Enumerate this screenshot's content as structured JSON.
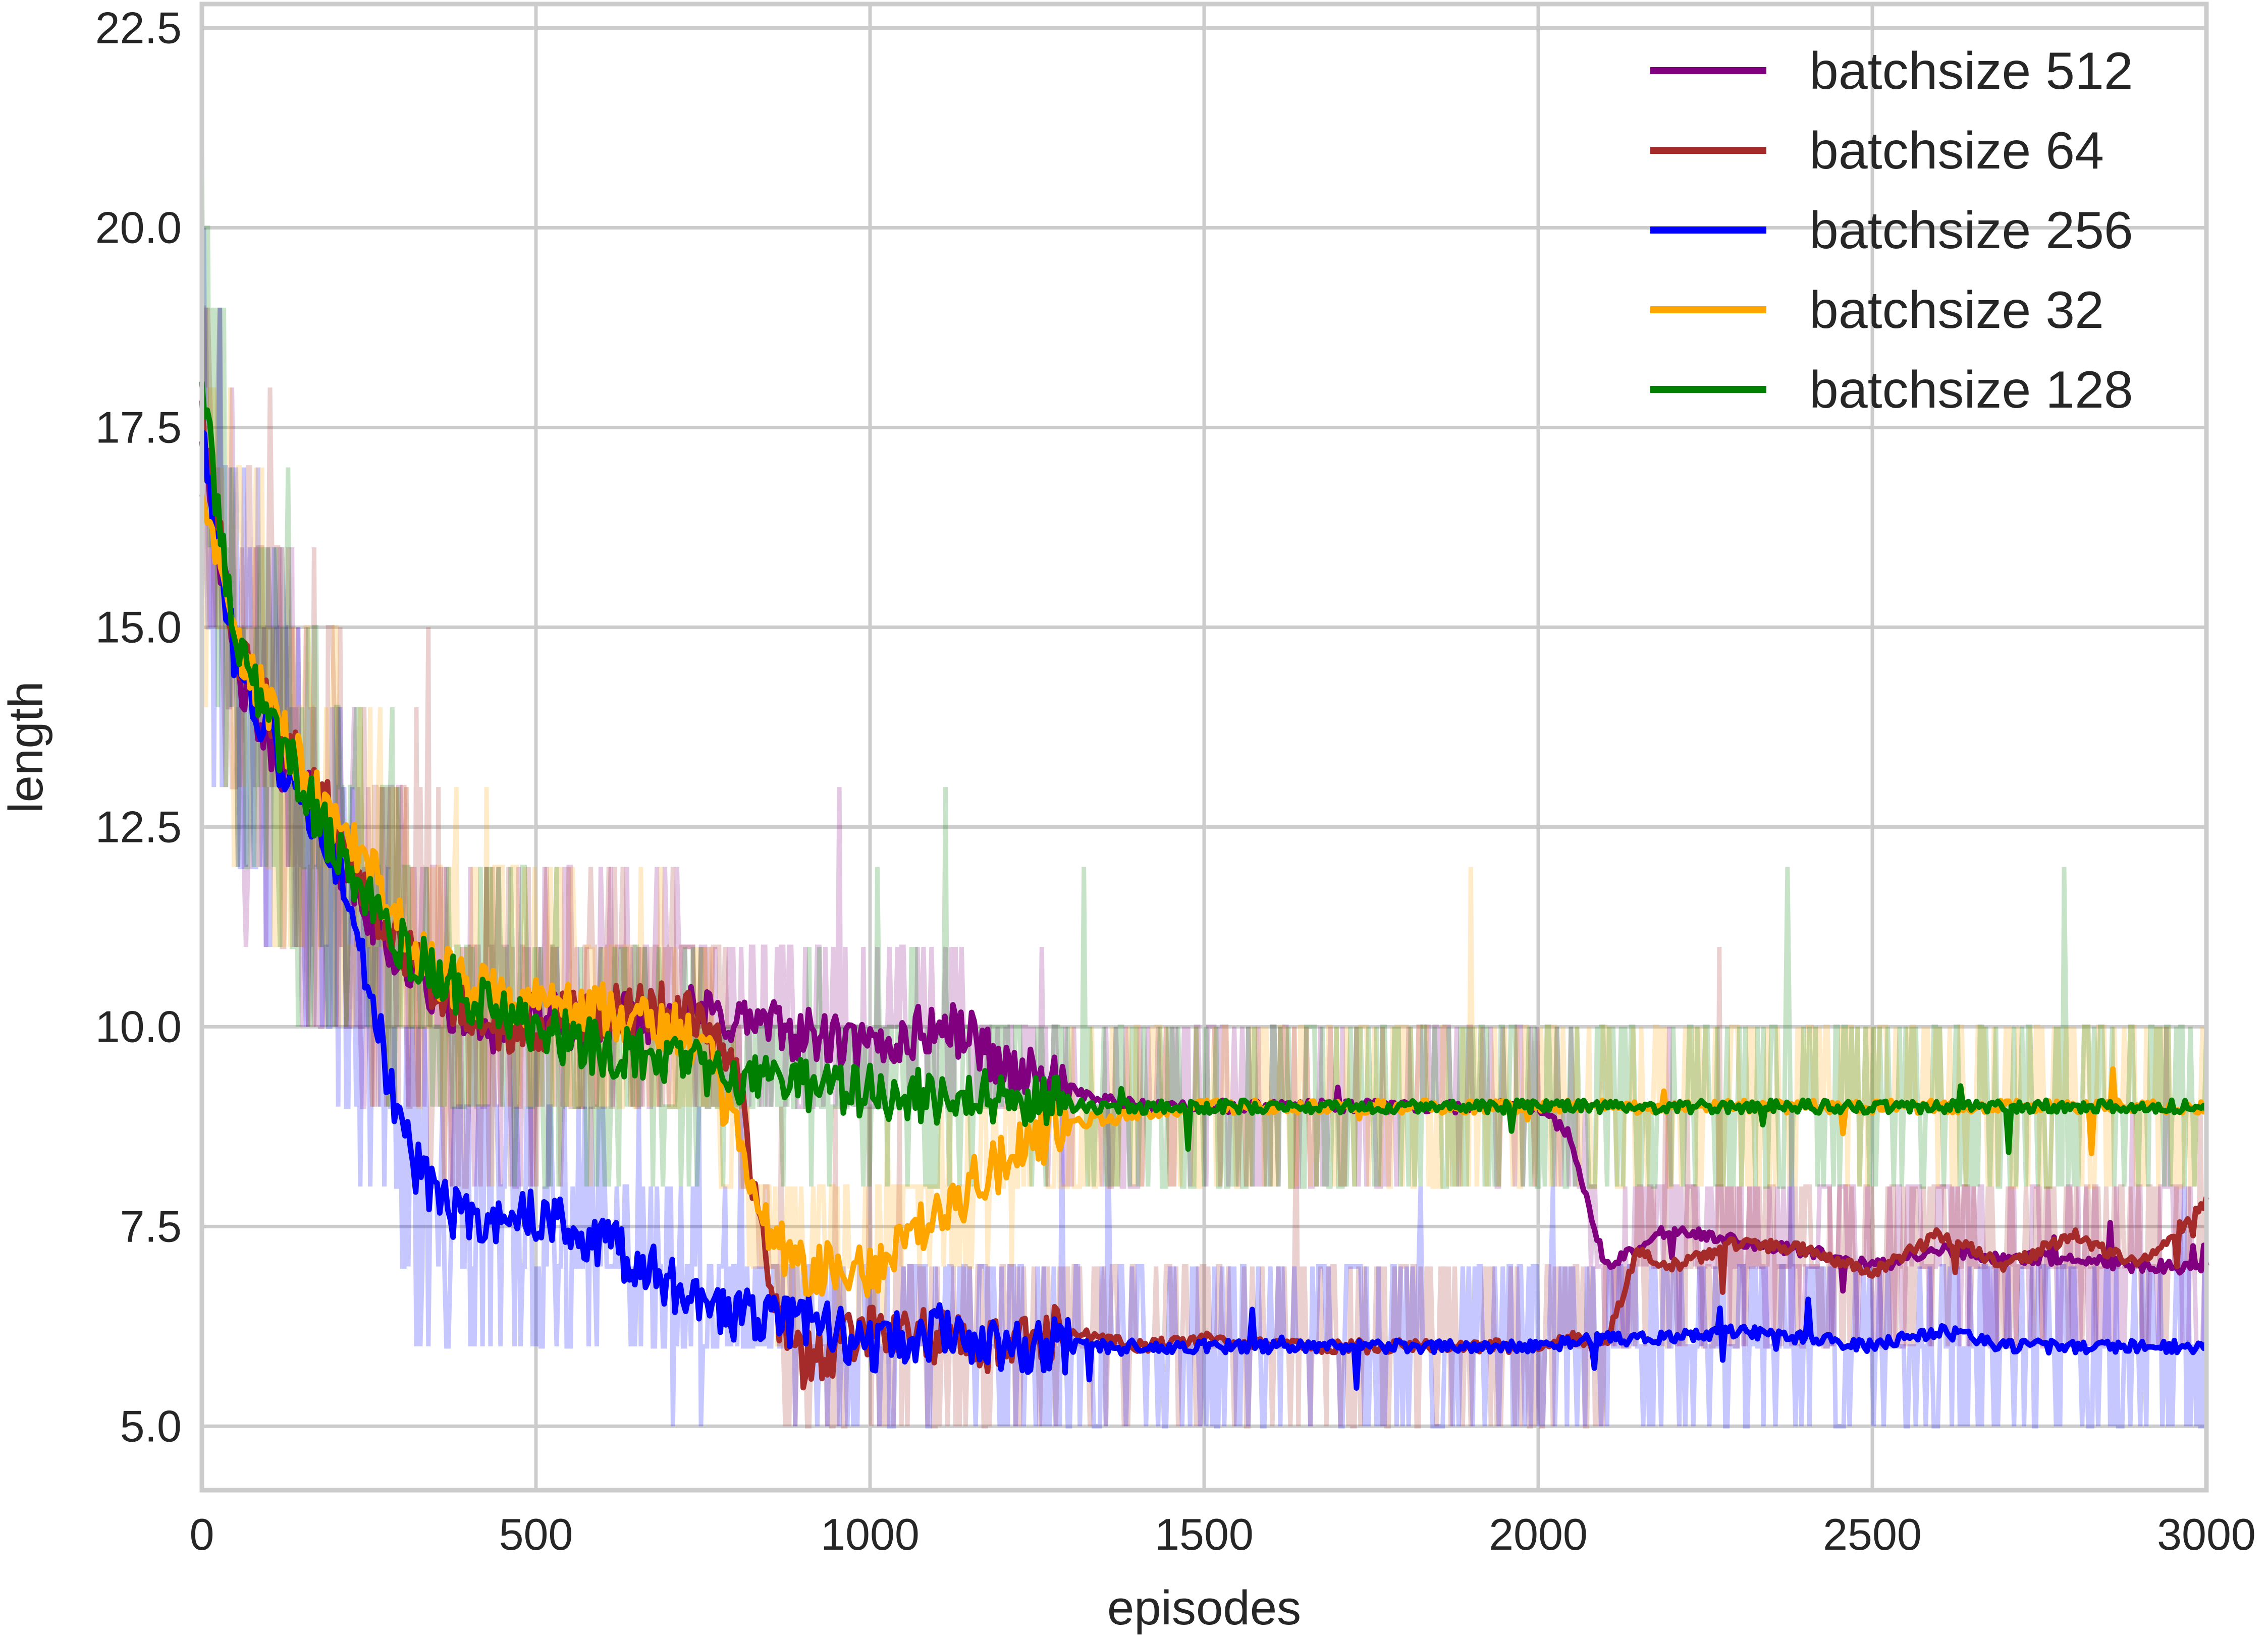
{
  "chart_data": {
    "type": "line",
    "title": "",
    "xlabel": "episodes",
    "ylabel": "length",
    "xlim": [
      0,
      3000
    ],
    "ylim": [
      4.2,
      22.8
    ],
    "grid": true,
    "legend_position": "top-right",
    "x_ticks": [
      "0",
      "500",
      "1000",
      "1500",
      "2000",
      "2500",
      "3000"
    ],
    "y_ticks": [
      "5.0",
      "7.5",
      "10.0",
      "12.5",
      "15.0",
      "17.5",
      "20.0",
      "22.5"
    ],
    "raw_series_note_free": true,
    "series": [
      {
        "name": "batchsize 512",
        "color": "#800080",
        "x": [
          0,
          50,
          100,
          150,
          200,
          250,
          300,
          350,
          400,
          450,
          500,
          600,
          700,
          800,
          900,
          1000,
          1100,
          1150,
          1200,
          1300,
          1400,
          1500,
          1600,
          1700,
          1800,
          1900,
          2000,
          2050,
          2100,
          2150,
          2200,
          2300,
          2400,
          2500,
          2600,
          2700,
          2800,
          2900,
          3000
        ],
        "values": [
          17.5,
          14.5,
          13.5,
          13.0,
          12.2,
          11.4,
          10.8,
          10.4,
          10.1,
          10.0,
          10.1,
          10.0,
          10.2,
          10.1,
          9.9,
          9.7,
          10.0,
          9.9,
          9.5,
          9.2,
          9.0,
          9.0,
          9.0,
          9.0,
          9.0,
          9.0,
          9.0,
          8.6,
          7.0,
          7.2,
          7.5,
          7.3,
          7.2,
          7.0,
          7.2,
          7.1,
          7.1,
          7.0,
          7.0
        ]
      },
      {
        "name": "batchsize 64",
        "color": "#a52a2a",
        "x": [
          0,
          50,
          100,
          150,
          200,
          250,
          300,
          350,
          400,
          450,
          500,
          600,
          700,
          750,
          800,
          850,
          900,
          950,
          1000,
          1100,
          1200,
          1300,
          1400,
          1500,
          1600,
          1700,
          1800,
          1900,
          2000,
          2050,
          2100,
          2150,
          2200,
          2300,
          2400,
          2500,
          2600,
          2700,
          2800,
          2900,
          3000
        ],
        "values": [
          17.6,
          14.8,
          14.0,
          13.2,
          12.6,
          11.6,
          11.0,
          10.5,
          10.2,
          10.0,
          10.0,
          10.2,
          10.2,
          10.1,
          9.5,
          6.6,
          5.8,
          6.0,
          6.2,
          6.1,
          6.0,
          6.2,
          6.0,
          6.1,
          6.0,
          6.0,
          6.0,
          6.0,
          6.0,
          6.1,
          6.0,
          7.2,
          7.0,
          7.3,
          7.2,
          6.9,
          7.4,
          7.0,
          7.4,
          7.0,
          7.8
        ]
      },
      {
        "name": "batchsize 256",
        "color": "#0000ff",
        "x": [
          0,
          50,
          100,
          150,
          200,
          250,
          300,
          350,
          400,
          450,
          500,
          600,
          700,
          800,
          900,
          1000,
          1100,
          1200,
          1300,
          1400,
          1500,
          1600,
          1700,
          1800,
          1900,
          2000,
          2100,
          2200,
          2300,
          2400,
          2500,
          2600,
          2700,
          2800,
          2900,
          3000
        ],
        "values": [
          17.5,
          14.6,
          13.6,
          12.8,
          12.0,
          10.5,
          8.6,
          7.8,
          7.6,
          7.6,
          7.6,
          7.3,
          6.8,
          6.4,
          6.3,
          6.0,
          6.2,
          6.0,
          6.0,
          6.0,
          6.0,
          6.0,
          6.0,
          6.0,
          6.0,
          6.0,
          6.1,
          6.1,
          6.2,
          6.1,
          6.0,
          6.2,
          6.0,
          6.0,
          6.0,
          6.0
        ]
      },
      {
        "name": "batchsize 32",
        "color": "#ffa500",
        "x": [
          0,
          50,
          100,
          150,
          200,
          250,
          300,
          350,
          400,
          450,
          500,
          600,
          700,
          750,
          800,
          850,
          900,
          950,
          1000,
          1050,
          1100,
          1150,
          1200,
          1250,
          1300,
          1400,
          1500,
          1600,
          1700,
          1800,
          1900,
          2000,
          2100,
          2200,
          2300,
          2400,
          2500,
          2600,
          2700,
          2800,
          2900,
          3000
        ],
        "values": [
          17.0,
          14.8,
          14.0,
          13.2,
          12.6,
          12.0,
          11.2,
          10.7,
          10.5,
          10.3,
          10.3,
          10.2,
          10.0,
          9.8,
          8.6,
          7.4,
          7.0,
          7.0,
          6.9,
          7.4,
          7.6,
          8.0,
          8.3,
          8.6,
          8.8,
          8.9,
          9.0,
          9.0,
          9.0,
          9.0,
          9.0,
          9.0,
          9.0,
          9.0,
          9.0,
          9.0,
          9.0,
          9.0,
          9.0,
          9.0,
          9.0,
          9.0
        ]
      },
      {
        "name": "batchsize 128",
        "color": "#008000",
        "x": [
          0,
          50,
          100,
          150,
          200,
          250,
          300,
          350,
          400,
          450,
          500,
          600,
          700,
          800,
          900,
          1000,
          1100,
          1200,
          1300,
          1400,
          1500,
          1600,
          1700,
          1800,
          1900,
          2000,
          2100,
          2200,
          2300,
          2400,
          2500,
          2600,
          2700,
          2800,
          2900,
          3000
        ],
        "values": [
          18.0,
          14.8,
          13.8,
          13.0,
          12.2,
          11.6,
          11.0,
          10.7,
          10.4,
          10.2,
          10.0,
          9.7,
          9.6,
          9.4,
          9.3,
          9.2,
          9.1,
          9.1,
          9.0,
          9.0,
          9.0,
          9.0,
          9.0,
          9.0,
          9.0,
          9.0,
          9.0,
          9.0,
          9.0,
          9.0,
          9.0,
          9.0,
          9.0,
          9.0,
          9.0,
          9.0
        ]
      }
    ]
  }
}
